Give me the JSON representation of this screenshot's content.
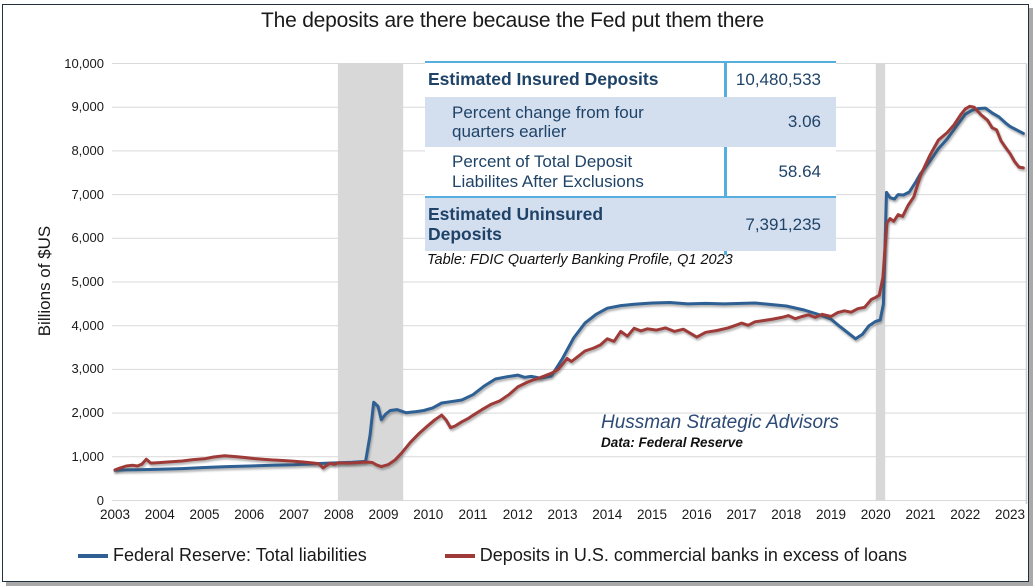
{
  "title": "The deposits are there because the Fed put them there",
  "y_axis_label": "Billions of $US",
  "table": {
    "rows": [
      {
        "label": "Estimated Insured Deposits",
        "value": "10,480,533"
      },
      {
        "label": "Percent change from four quarters earlier",
        "value": "3.06"
      },
      {
        "label": "Percent of Total Deposit Liabilites After Exclusions",
        "value": "58.64"
      },
      {
        "label": "Estimated Uninsured Deposits",
        "value": "7,391,235"
      }
    ],
    "caption": "Table: FDIC Quarterly Banking Profile, Q1 2023"
  },
  "annotation": {
    "source_name": "Hussman Strategic Advisors",
    "data_source": "Data: Federal Reserve"
  },
  "legend": {
    "items": [
      {
        "label": "Federal Reserve: Total liabilities",
        "color": "#2E6094"
      },
      {
        "label": "Deposits in U.S. commercial banks in excess of loans",
        "color": "#9E3B38"
      }
    ]
  },
  "colors": {
    "blue_series": "#2E6094",
    "red_series": "#9E3B38",
    "recession_band": "#D8D8D8",
    "gridline": "#D9D9D9",
    "table_accent": "#56AEDF",
    "table_shade": "#D3DFEF",
    "navy_text": "#1F4368"
  },
  "chart_data": {
    "type": "line",
    "title": "The deposits are there because the Fed put them there",
    "xlabel": "",
    "ylabel": "Billions of $US",
    "xlim": [
      2002.85,
      2023.45
    ],
    "ylim": [
      0,
      10000
    ],
    "grid": "horizontal",
    "legend_position": "bottom",
    "x_ticks": [
      "2003",
      "2004",
      "2005",
      "2006",
      "2007",
      "2008",
      "2009",
      "2010",
      "2011",
      "2012",
      "2013",
      "2014",
      "2015",
      "2016",
      "2017",
      "2018",
      "2019",
      "2020",
      "2021",
      "2022",
      "2023"
    ],
    "y_ticks": [
      "0",
      "1,000",
      "2,000",
      "3,000",
      "4,000",
      "5,000",
      "6,000",
      "7,000",
      "8,000",
      "9,000",
      "10,000"
    ],
    "recession_bands": [
      {
        "start": 2007.98,
        "end": 2009.44
      },
      {
        "start": 2020.0,
        "end": 2020.21
      }
    ],
    "series": [
      {
        "name": "Federal Reserve: Total liabilities",
        "color": "#2E6094",
        "points": [
          [
            2003.0,
            690
          ],
          [
            2003.25,
            700
          ],
          [
            2003.5,
            705
          ],
          [
            2003.75,
            710
          ],
          [
            2004.0,
            715
          ],
          [
            2004.5,
            730
          ],
          [
            2005.0,
            755
          ],
          [
            2005.5,
            775
          ],
          [
            2006.0,
            790
          ],
          [
            2006.5,
            805
          ],
          [
            2007.0,
            820
          ],
          [
            2007.5,
            845
          ],
          [
            2008.0,
            865
          ],
          [
            2008.3,
            875
          ],
          [
            2008.6,
            895
          ],
          [
            2008.7,
            1500
          ],
          [
            2008.78,
            2250
          ],
          [
            2008.88,
            2150
          ],
          [
            2008.95,
            1850
          ],
          [
            2009.05,
            1980
          ],
          [
            2009.15,
            2060
          ],
          [
            2009.3,
            2080
          ],
          [
            2009.5,
            2010
          ],
          [
            2009.7,
            2030
          ],
          [
            2009.9,
            2060
          ],
          [
            2010.1,
            2120
          ],
          [
            2010.3,
            2230
          ],
          [
            2010.5,
            2260
          ],
          [
            2010.75,
            2300
          ],
          [
            2011.0,
            2420
          ],
          [
            2011.25,
            2620
          ],
          [
            2011.5,
            2780
          ],
          [
            2011.75,
            2830
          ],
          [
            2012.0,
            2870
          ],
          [
            2012.15,
            2820
          ],
          [
            2012.3,
            2840
          ],
          [
            2012.5,
            2800
          ],
          [
            2012.75,
            2850
          ],
          [
            2013.0,
            3250
          ],
          [
            2013.25,
            3720
          ],
          [
            2013.5,
            4060
          ],
          [
            2013.75,
            4260
          ],
          [
            2014.0,
            4400
          ],
          [
            2014.3,
            4460
          ],
          [
            2014.6,
            4490
          ],
          [
            2015.0,
            4520
          ],
          [
            2015.4,
            4530
          ],
          [
            2015.8,
            4500
          ],
          [
            2016.2,
            4510
          ],
          [
            2016.6,
            4500
          ],
          [
            2017.0,
            4510
          ],
          [
            2017.3,
            4520
          ],
          [
            2017.6,
            4490
          ],
          [
            2018.0,
            4450
          ],
          [
            2018.4,
            4360
          ],
          [
            2018.8,
            4230
          ],
          [
            2019.0,
            4150
          ],
          [
            2019.2,
            3980
          ],
          [
            2019.4,
            3820
          ],
          [
            2019.55,
            3700
          ],
          [
            2019.7,
            3800
          ],
          [
            2019.85,
            4000
          ],
          [
            2020.0,
            4100
          ],
          [
            2020.1,
            4130
          ],
          [
            2020.17,
            4500
          ],
          [
            2020.24,
            7050
          ],
          [
            2020.32,
            6930
          ],
          [
            2020.42,
            6900
          ],
          [
            2020.5,
            7000
          ],
          [
            2020.62,
            6990
          ],
          [
            2020.75,
            7060
          ],
          [
            2020.9,
            7300
          ],
          [
            2021.0,
            7480
          ],
          [
            2021.2,
            7750
          ],
          [
            2021.4,
            8050
          ],
          [
            2021.6,
            8280
          ],
          [
            2021.8,
            8560
          ],
          [
            2022.0,
            8840
          ],
          [
            2022.15,
            8930
          ],
          [
            2022.3,
            8970
          ],
          [
            2022.45,
            8980
          ],
          [
            2022.6,
            8870
          ],
          [
            2022.75,
            8780
          ],
          [
            2022.9,
            8640
          ],
          [
            2023.0,
            8560
          ],
          [
            2023.15,
            8480
          ],
          [
            2023.3,
            8400
          ]
        ]
      },
      {
        "name": "Deposits in U.S. commercial banks in excess of loans",
        "color": "#9E3B38",
        "points": [
          [
            2003.0,
            700
          ],
          [
            2003.1,
            740
          ],
          [
            2003.25,
            790
          ],
          [
            2003.4,
            805
          ],
          [
            2003.5,
            790
          ],
          [
            2003.6,
            830
          ],
          [
            2003.7,
            945
          ],
          [
            2003.8,
            855
          ],
          [
            2003.95,
            865
          ],
          [
            2004.1,
            875
          ],
          [
            2004.3,
            890
          ],
          [
            2004.5,
            905
          ],
          [
            2004.75,
            935
          ],
          [
            2005.0,
            955
          ],
          [
            2005.2,
            995
          ],
          [
            2005.45,
            1025
          ],
          [
            2005.7,
            1005
          ],
          [
            2005.9,
            985
          ],
          [
            2006.1,
            960
          ],
          [
            2006.3,
            945
          ],
          [
            2006.5,
            930
          ],
          [
            2006.75,
            915
          ],
          [
            2007.0,
            900
          ],
          [
            2007.2,
            880
          ],
          [
            2007.4,
            860
          ],
          [
            2007.55,
            845
          ],
          [
            2007.65,
            745
          ],
          [
            2007.8,
            855
          ],
          [
            2007.9,
            825
          ],
          [
            2008.0,
            865
          ],
          [
            2008.2,
            855
          ],
          [
            2008.4,
            865
          ],
          [
            2008.6,
            880
          ],
          [
            2008.75,
            870
          ],
          [
            2008.85,
            810
          ],
          [
            2008.95,
            775
          ],
          [
            2009.1,
            820
          ],
          [
            2009.25,
            920
          ],
          [
            2009.4,
            1080
          ],
          [
            2009.6,
            1330
          ],
          [
            2009.8,
            1540
          ],
          [
            2010.0,
            1720
          ],
          [
            2010.15,
            1850
          ],
          [
            2010.3,
            1955
          ],
          [
            2010.4,
            1840
          ],
          [
            2010.5,
            1665
          ],
          [
            2010.6,
            1705
          ],
          [
            2010.75,
            1800
          ],
          [
            2010.9,
            1880
          ],
          [
            2011.0,
            1950
          ],
          [
            2011.2,
            2080
          ],
          [
            2011.4,
            2200
          ],
          [
            2011.6,
            2280
          ],
          [
            2011.8,
            2420
          ],
          [
            2012.0,
            2600
          ],
          [
            2012.2,
            2700
          ],
          [
            2012.35,
            2760
          ],
          [
            2012.5,
            2810
          ],
          [
            2012.75,
            2910
          ],
          [
            2012.9,
            3000
          ],
          [
            2013.0,
            3120
          ],
          [
            2013.1,
            3250
          ],
          [
            2013.2,
            3180
          ],
          [
            2013.35,
            3300
          ],
          [
            2013.5,
            3420
          ],
          [
            2013.7,
            3490
          ],
          [
            2013.85,
            3560
          ],
          [
            2014.0,
            3700
          ],
          [
            2014.15,
            3640
          ],
          [
            2014.3,
            3870
          ],
          [
            2014.45,
            3760
          ],
          [
            2014.6,
            3940
          ],
          [
            2014.75,
            3880
          ],
          [
            2014.9,
            3930
          ],
          [
            2015.1,
            3900
          ],
          [
            2015.3,
            3950
          ],
          [
            2015.5,
            3870
          ],
          [
            2015.7,
            3920
          ],
          [
            2015.9,
            3800
          ],
          [
            2016.0,
            3740
          ],
          [
            2016.2,
            3850
          ],
          [
            2016.45,
            3890
          ],
          [
            2016.7,
            3950
          ],
          [
            2016.9,
            4020
          ],
          [
            2017.0,
            4060
          ],
          [
            2017.15,
            4010
          ],
          [
            2017.3,
            4090
          ],
          [
            2017.5,
            4120
          ],
          [
            2017.7,
            4150
          ],
          [
            2017.9,
            4190
          ],
          [
            2018.05,
            4230
          ],
          [
            2018.2,
            4160
          ],
          [
            2018.35,
            4210
          ],
          [
            2018.5,
            4250
          ],
          [
            2018.65,
            4190
          ],
          [
            2018.8,
            4260
          ],
          [
            2019.0,
            4210
          ],
          [
            2019.15,
            4300
          ],
          [
            2019.3,
            4340
          ],
          [
            2019.45,
            4310
          ],
          [
            2019.6,
            4390
          ],
          [
            2019.75,
            4420
          ],
          [
            2019.9,
            4600
          ],
          [
            2020.0,
            4650
          ],
          [
            2020.08,
            4700
          ],
          [
            2020.16,
            5100
          ],
          [
            2020.25,
            6350
          ],
          [
            2020.32,
            6450
          ],
          [
            2020.4,
            6390
          ],
          [
            2020.5,
            6540
          ],
          [
            2020.6,
            6500
          ],
          [
            2020.72,
            6750
          ],
          [
            2020.85,
            6950
          ],
          [
            2021.0,
            7440
          ],
          [
            2021.2,
            7880
          ],
          [
            2021.4,
            8250
          ],
          [
            2021.6,
            8420
          ],
          [
            2021.75,
            8600
          ],
          [
            2021.9,
            8830
          ],
          [
            2022.0,
            8960
          ],
          [
            2022.1,
            9020
          ],
          [
            2022.2,
            9000
          ],
          [
            2022.35,
            8830
          ],
          [
            2022.5,
            8700
          ],
          [
            2022.6,
            8530
          ],
          [
            2022.7,
            8480
          ],
          [
            2022.8,
            8230
          ],
          [
            2022.9,
            8080
          ],
          [
            2023.0,
            7940
          ],
          [
            2023.1,
            7760
          ],
          [
            2023.2,
            7630
          ],
          [
            2023.3,
            7610
          ]
        ]
      }
    ]
  }
}
